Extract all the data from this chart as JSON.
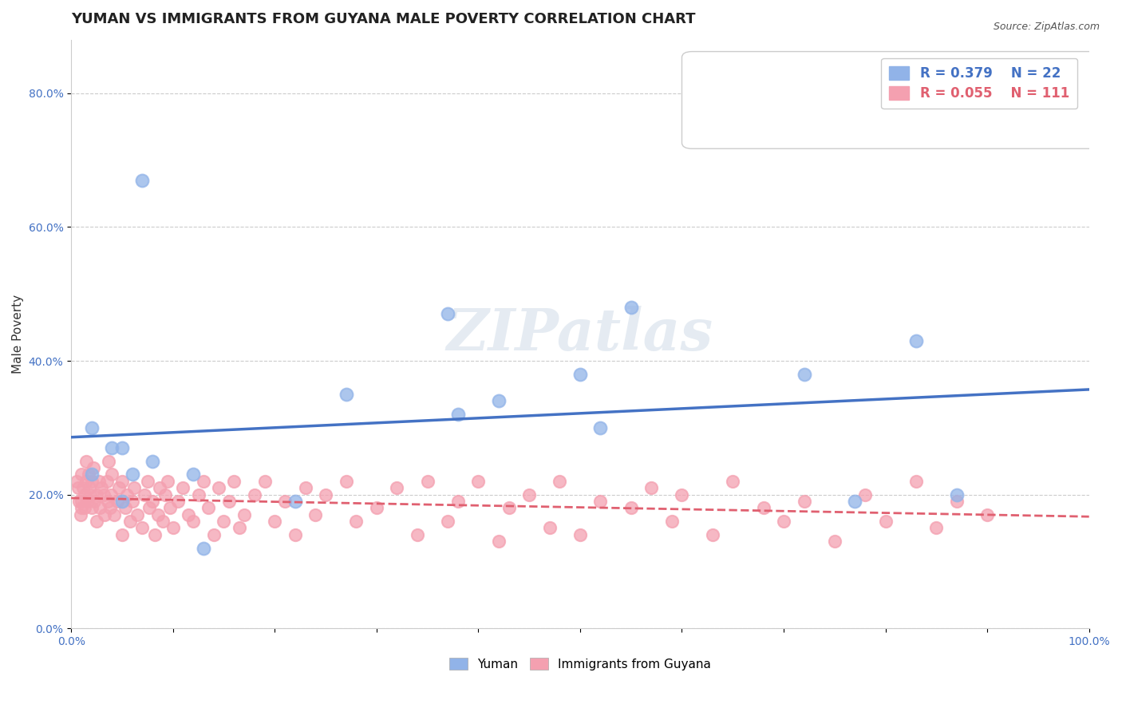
{
  "title": "YUMAN VS IMMIGRANTS FROM GUYANA MALE POVERTY CORRELATION CHART",
  "source_text": "Source: ZipAtlas.com",
  "xlabel": "",
  "ylabel": "Male Poverty",
  "xlim": [
    0.0,
    1.0
  ],
  "ylim": [
    0.0,
    0.88
  ],
  "xticks": [
    0.0,
    0.1,
    0.2,
    0.3,
    0.4,
    0.5,
    0.6,
    0.7,
    0.8,
    0.9,
    1.0
  ],
  "yticks": [
    0.0,
    0.2,
    0.4,
    0.6,
    0.8
  ],
  "yuman_R": 0.379,
  "yuman_N": 22,
  "guyana_R": 0.055,
  "guyana_N": 111,
  "yuman_color": "#91b3e8",
  "guyana_color": "#f4a0b0",
  "yuman_line_color": "#4472c4",
  "guyana_line_color": "#e06070",
  "watermark": "ZIPatlas",
  "scatter_alpha": 0.7,
  "yuman_x": [
    0.02,
    0.02,
    0.04,
    0.05,
    0.05,
    0.06,
    0.07,
    0.08,
    0.12,
    0.13,
    0.22,
    0.27,
    0.37,
    0.38,
    0.42,
    0.5,
    0.52,
    0.55,
    0.72,
    0.77,
    0.83,
    0.87
  ],
  "yuman_y": [
    0.3,
    0.23,
    0.27,
    0.27,
    0.19,
    0.23,
    0.67,
    0.25,
    0.23,
    0.12,
    0.19,
    0.35,
    0.47,
    0.32,
    0.34,
    0.38,
    0.3,
    0.48,
    0.38,
    0.19,
    0.43,
    0.2
  ],
  "guyana_x": [
    0.005,
    0.007,
    0.008,
    0.009,
    0.01,
    0.01,
    0.01,
    0.012,
    0.013,
    0.013,
    0.015,
    0.015,
    0.016,
    0.017,
    0.018,
    0.019,
    0.02,
    0.02,
    0.022,
    0.023,
    0.025,
    0.025,
    0.027,
    0.028,
    0.03,
    0.032,
    0.033,
    0.035,
    0.036,
    0.037,
    0.038,
    0.039,
    0.04,
    0.042,
    0.045,
    0.047,
    0.05,
    0.05,
    0.053,
    0.055,
    0.058,
    0.06,
    0.062,
    0.065,
    0.07,
    0.072,
    0.075,
    0.077,
    0.08,
    0.082,
    0.085,
    0.087,
    0.09,
    0.092,
    0.095,
    0.097,
    0.1,
    0.105,
    0.11,
    0.115,
    0.12,
    0.125,
    0.13,
    0.135,
    0.14,
    0.145,
    0.15,
    0.155,
    0.16,
    0.165,
    0.17,
    0.18,
    0.19,
    0.2,
    0.21,
    0.22,
    0.23,
    0.24,
    0.25,
    0.27,
    0.28,
    0.3,
    0.32,
    0.34,
    0.35,
    0.37,
    0.38,
    0.4,
    0.42,
    0.43,
    0.45,
    0.47,
    0.48,
    0.5,
    0.52,
    0.55,
    0.57,
    0.59,
    0.6,
    0.63,
    0.65,
    0.68,
    0.7,
    0.72,
    0.75,
    0.78,
    0.8,
    0.83,
    0.85,
    0.87,
    0.9
  ],
  "guyana_y": [
    0.22,
    0.21,
    0.19,
    0.17,
    0.23,
    0.19,
    0.18,
    0.21,
    0.2,
    0.18,
    0.25,
    0.22,
    0.19,
    0.23,
    0.21,
    0.2,
    0.22,
    0.18,
    0.24,
    0.19,
    0.2,
    0.16,
    0.22,
    0.18,
    0.21,
    0.2,
    0.17,
    0.22,
    0.19,
    0.25,
    0.18,
    0.2,
    0.23,
    0.17,
    0.19,
    0.21,
    0.14,
    0.22,
    0.18,
    0.2,
    0.16,
    0.19,
    0.21,
    0.17,
    0.15,
    0.2,
    0.22,
    0.18,
    0.19,
    0.14,
    0.17,
    0.21,
    0.16,
    0.2,
    0.22,
    0.18,
    0.15,
    0.19,
    0.21,
    0.17,
    0.16,
    0.2,
    0.22,
    0.18,
    0.14,
    0.21,
    0.16,
    0.19,
    0.22,
    0.15,
    0.17,
    0.2,
    0.22,
    0.16,
    0.19,
    0.14,
    0.21,
    0.17,
    0.2,
    0.22,
    0.16,
    0.18,
    0.21,
    0.14,
    0.22,
    0.16,
    0.19,
    0.22,
    0.13,
    0.18,
    0.2,
    0.15,
    0.22,
    0.14,
    0.19,
    0.18,
    0.21,
    0.16,
    0.2,
    0.14,
    0.22,
    0.18,
    0.16,
    0.19,
    0.13,
    0.2,
    0.16,
    0.22,
    0.15,
    0.19,
    0.17
  ],
  "background_color": "#ffffff",
  "grid_color": "#cccccc",
  "title_fontsize": 13,
  "axis_label_fontsize": 11,
  "tick_fontsize": 10,
  "legend_fontsize": 12
}
